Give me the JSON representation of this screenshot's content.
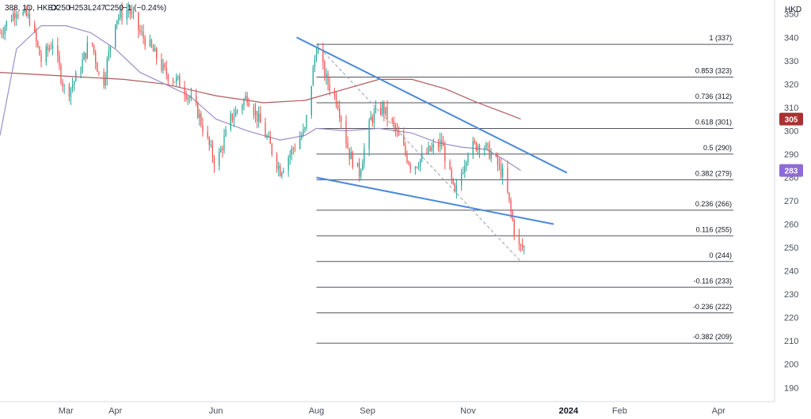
{
  "legend": {
    "symbol": "388, 1D, HKEX",
    "open": "O250",
    "high": "H253",
    "low": "L247",
    "close": "C250",
    "change": "−1 (−0.24%)"
  },
  "currency": "HKD",
  "colors": {
    "up": "#26a69a",
    "down": "#ef5350",
    "ma_short": "#9c8fc7",
    "ma_long": "#b05a5a",
    "trend": "#4a89dc",
    "fib": "#50535e",
    "badge_red": "#a83232",
    "badge_purple": "#8e6bd6"
  },
  "badges": [
    {
      "value": "305",
      "y": 305,
      "color": "#a83232"
    },
    {
      "value": "283",
      "y": 283,
      "color": "#8e6bd6"
    }
  ],
  "chart_data": {
    "type": "candlestick",
    "y_ticks": [
      "350",
      "340",
      "330",
      "320",
      "310",
      "300",
      "290",
      "280",
      "270",
      "260",
      "250",
      "240",
      "230",
      "220",
      "210",
      "200",
      "190"
    ],
    "y_tick_values": [
      350,
      340,
      330,
      320,
      310,
      300,
      290,
      280,
      270,
      260,
      250,
      240,
      230,
      220,
      210,
      200,
      190
    ],
    "ylim": [
      184,
      356
    ],
    "x_range_days": [
      0,
      470
    ],
    "x_ticks": [
      {
        "label": "Mar",
        "day": 40,
        "bold": false
      },
      {
        "label": "Apr",
        "day": 70,
        "bold": false
      },
      {
        "label": "Jun",
        "day": 131,
        "bold": false
      },
      {
        "label": "Aug",
        "day": 192,
        "bold": false
      },
      {
        "label": "Sep",
        "day": 223,
        "bold": false
      },
      {
        "label": "Nov",
        "day": 284,
        "bold": false
      },
      {
        "label": "2024",
        "day": 345,
        "bold": true
      },
      {
        "label": "Feb",
        "day": 376,
        "bold": false
      },
      {
        "label": "Apr",
        "day": 436,
        "bold": false
      }
    ],
    "anchors": [
      [
        0,
        342
      ],
      [
        10,
        352
      ],
      [
        18,
        348
      ],
      [
        25,
        330
      ],
      [
        32,
        338
      ],
      [
        40,
        315
      ],
      [
        48,
        325
      ],
      [
        55,
        340
      ],
      [
        62,
        318
      ],
      [
        70,
        348
      ],
      [
        78,
        352
      ],
      [
        85,
        342
      ],
      [
        92,
        335
      ],
      [
        100,
        325
      ],
      [
        110,
        320
      ],
      [
        120,
        308
      ],
      [
        131,
        285
      ],
      [
        140,
        305
      ],
      [
        150,
        315
      ],
      [
        160,
        300
      ],
      [
        170,
        283
      ],
      [
        180,
        295
      ],
      [
        185,
        300
      ],
      [
        192,
        336
      ],
      [
        198,
        322
      ],
      [
        205,
        312
      ],
      [
        212,
        290
      ],
      [
        218,
        282
      ],
      [
        225,
        305
      ],
      [
        232,
        310
      ],
      [
        240,
        300
      ],
      [
        250,
        284
      ],
      [
        258,
        290
      ],
      [
        268,
        295
      ],
      [
        276,
        272
      ],
      [
        284,
        292
      ],
      [
        292,
        295
      ],
      [
        300,
        288
      ],
      [
        306,
        280
      ],
      [
        310,
        265
      ],
      [
        314,
        250
      ],
      [
        318,
        250
      ]
    ],
    "fib_levels": [
      {
        "label": "1 (337)",
        "value": 337
      },
      {
        "label": "0.853 (323)",
        "value": 323
      },
      {
        "label": "0.736 (312)",
        "value": 312
      },
      {
        "label": "0.618 (301)",
        "value": 301
      },
      {
        "label": "0.5 (290)",
        "value": 290
      },
      {
        "label": "0.382 (279)",
        "value": 279
      },
      {
        "label": "0.236 (266)",
        "value": 266
      },
      {
        "label": "0.116 (255)",
        "value": 255
      },
      {
        "label": "0 (244)",
        "value": 244
      },
      {
        "label": "-0.116 (233)",
        "value": 233
      },
      {
        "label": "-0.236 (222)",
        "value": 222
      },
      {
        "label": "-0.382 (209)",
        "value": 209
      }
    ],
    "fib_x_range": [
      192,
      445
    ],
    "trend_lines": [
      {
        "name": "upper",
        "points": [
          [
            180,
            340
          ],
          [
            344,
            282
          ]
        ]
      },
      {
        "name": "lower",
        "points": [
          [
            192,
            280
          ],
          [
            336,
            260
          ]
        ]
      }
    ],
    "dashed_line": {
      "points": [
        [
          192,
          337
        ],
        [
          316,
          244
        ]
      ]
    },
    "ma_short": [
      [
        0,
        298
      ],
      [
        10,
        335
      ],
      [
        25,
        345
      ],
      [
        40,
        345
      ],
      [
        55,
        342
      ],
      [
        70,
        335
      ],
      [
        85,
        325
      ],
      [
        100,
        320
      ],
      [
        115,
        315
      ],
      [
        131,
        305
      ],
      [
        150,
        300
      ],
      [
        170,
        296
      ],
      [
        185,
        298
      ],
      [
        192,
        301
      ],
      [
        210,
        300
      ],
      [
        230,
        301
      ],
      [
        250,
        299
      ],
      [
        265,
        295
      ],
      [
        280,
        293
      ],
      [
        295,
        292
      ],
      [
        305,
        288
      ],
      [
        316,
        283
      ]
    ],
    "ma_long": [
      [
        0,
        325
      ],
      [
        25,
        324
      ],
      [
        50,
        323
      ],
      [
        75,
        322
      ],
      [
        100,
        320
      ],
      [
        131,
        315
      ],
      [
        160,
        312
      ],
      [
        185,
        313
      ],
      [
        205,
        317
      ],
      [
        230,
        322
      ],
      [
        250,
        322
      ],
      [
        270,
        318
      ],
      [
        290,
        312
      ],
      [
        305,
        308
      ],
      [
        316,
        305
      ]
    ]
  }
}
